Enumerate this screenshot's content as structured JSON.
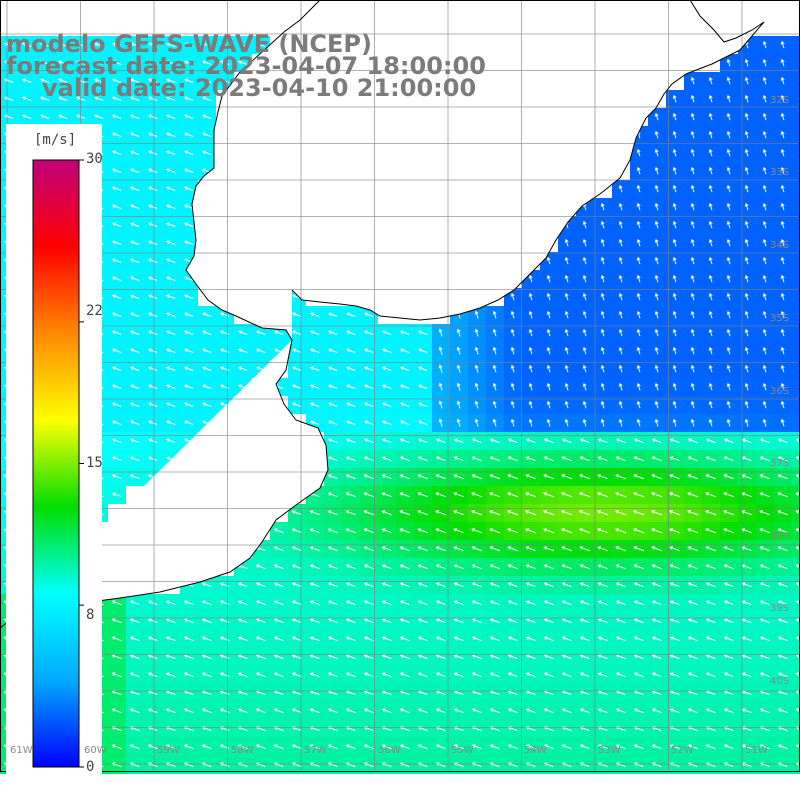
{
  "title": {
    "line1": "modelo GEFS-WAVE (NCEP)",
    "line2": "forecast date: 2023-04-07 18:00:00",
    "line3": "valid date: 2023-04-10 21:00:00"
  },
  "colorbar": {
    "unit": "[m/s]",
    "ticks": [
      "30",
      "22",
      "15",
      "8",
      "0"
    ],
    "tick_values": [
      30,
      22,
      15,
      8,
      0
    ],
    "min": 0,
    "max": 30,
    "colors": [
      "#0000ff",
      "#00aaff",
      "#00ffff",
      "#00dd00",
      "#ffff00",
      "#ff8800",
      "#ff0000",
      "#c0007a"
    ]
  },
  "map": {
    "lat_labels": [
      "32S",
      "33S",
      "34S",
      "35S",
      "36S",
      "37S",
      "38S",
      "39S",
      "40S"
    ],
    "lon_labels": [
      "61W",
      "60W",
      "59W",
      "58W",
      "57W",
      "56W",
      "55W",
      "54W",
      "53W",
      "52W",
      "51W"
    ],
    "land_color": "#ffffff",
    "grid_color": "#808080",
    "coast_color": "#000000",
    "arrow_color": "#ffffff",
    "field_description_low": "weak winds near Uruguay coast",
    "field_description_high": "stronger band near 37-38S"
  }
}
